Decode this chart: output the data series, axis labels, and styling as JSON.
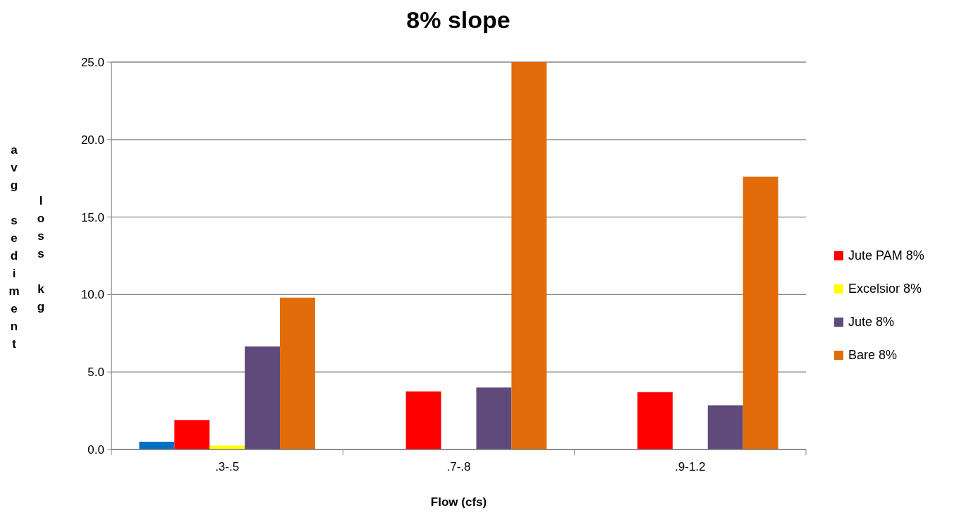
{
  "chart_data": {
    "type": "bar",
    "title": "8% slope",
    "xlabel": "Flow (cfs)",
    "ylabel": "avg sediment loss kg",
    "categories": [
      ".3-.5",
      ".7-.8",
      ".9-1.2"
    ],
    "series": [
      {
        "color": "#0070c0",
        "values": [
          0.5,
          null,
          null
        ]
      },
      {
        "name": "Jute PAM 8%",
        "color": "#ff0000",
        "values": [
          1.9,
          3.75,
          3.7
        ]
      },
      {
        "name": "Excelsior 8%",
        "color": "#ffff00",
        "values": [
          0.25,
          null,
          null
        ]
      },
      {
        "name": "Jute 8%",
        "color": "#604a7b",
        "values": [
          6.65,
          4.0,
          2.85
        ]
      },
      {
        "name": "Bare 8%",
        "color": "#e36c0a",
        "values": [
          9.8,
          25.0,
          17.6
        ]
      }
    ],
    "ylim": [
      0,
      25
    ],
    "yticks": [
      {
        "value": 0,
        "label": "0.0"
      },
      {
        "value": 5,
        "label": "5.0"
      },
      {
        "value": 10,
        "label": "10.0"
      },
      {
        "value": 15,
        "label": "15.0"
      },
      {
        "value": 20,
        "label": "20.0"
      },
      {
        "value": 25,
        "label": "25.0"
      }
    ],
    "grid": "y",
    "legend": "right"
  }
}
